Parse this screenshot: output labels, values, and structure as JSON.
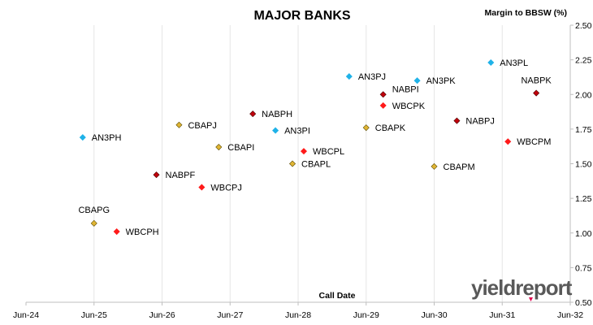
{
  "chart_data": {
    "type": "scatter",
    "title": "MAJOR BANKS",
    "xlabel": "Call Date",
    "ylabel": "Margin to BBSW (%)",
    "x_ticks": [
      "Jun-24",
      "Jun-25",
      "Jun-26",
      "Jun-27",
      "Jun-28",
      "Jun-29",
      "Jun-30",
      "Jun-31",
      "Jun-32"
    ],
    "y_ticks": [
      "0.50",
      "0.75",
      "1.00",
      "1.25",
      "1.50",
      "1.75",
      "2.00",
      "2.25",
      "2.50"
    ],
    "xlim": [
      "Jun-24",
      "Jun-32"
    ],
    "ylim": [
      0.5,
      2.5
    ],
    "grid": {
      "vertical": true,
      "horizontal": false
    },
    "colors": {
      "ANZ": "#1fb2e8",
      "CBA": "#e0b534",
      "NAB": "#c0000c",
      "WBC": "#ff1a1a"
    },
    "points": [
      {
        "label": "AN3PH",
        "x": "2025-04",
        "y": 1.69,
        "issuer": "ANZ"
      },
      {
        "label": "AN3PI",
        "x": "2028-02",
        "y": 1.74,
        "issuer": "ANZ"
      },
      {
        "label": "AN3PJ",
        "x": "2029-03",
        "y": 2.13,
        "issuer": "ANZ"
      },
      {
        "label": "AN3PK",
        "x": "2030-03",
        "y": 2.1,
        "issuer": "ANZ"
      },
      {
        "label": "AN3PL",
        "x": "2031-04",
        "y": 2.23,
        "issuer": "ANZ"
      },
      {
        "label": "CBAPG",
        "x": "2025-06",
        "y": 1.07,
        "issuer": "CBA"
      },
      {
        "label": "CBAPJ",
        "x": "2026-09",
        "y": 1.78,
        "issuer": "CBA"
      },
      {
        "label": "CBAPI",
        "x": "2027-04",
        "y": 1.62,
        "issuer": "CBA"
      },
      {
        "label": "CBAPL",
        "x": "2028-05",
        "y": 1.5,
        "issuer": "CBA"
      },
      {
        "label": "CBAPK",
        "x": "2029-06",
        "y": 1.76,
        "issuer": "CBA"
      },
      {
        "label": "CBAPM",
        "x": "2030-06",
        "y": 1.48,
        "issuer": "CBA"
      },
      {
        "label": "NABPF",
        "x": "2026-05",
        "y": 1.42,
        "issuer": "NAB"
      },
      {
        "label": "NABPH",
        "x": "2027-10",
        "y": 1.86,
        "issuer": "NAB"
      },
      {
        "label": "NABPI",
        "x": "2029-09",
        "y": 2.0,
        "issuer": "NAB"
      },
      {
        "label": "NABPJ",
        "x": "2030-10",
        "y": 1.81,
        "issuer": "NAB"
      },
      {
        "label": "NABPK",
        "x": "2031-12",
        "y": 2.01,
        "issuer": "NAB"
      },
      {
        "label": "WBCPH",
        "x": "2025-10",
        "y": 1.01,
        "issuer": "WBC"
      },
      {
        "label": "WBCPJ",
        "x": "2027-01",
        "y": 1.33,
        "issuer": "WBC"
      },
      {
        "label": "WBCPL",
        "x": "2028-07",
        "y": 1.59,
        "issuer": "WBC"
      },
      {
        "label": "WBCPK",
        "x": "2029-09",
        "y": 1.92,
        "issuer": "WBC"
      },
      {
        "label": "WBCPM",
        "x": "2031-07",
        "y": 1.66,
        "issuer": "WBC"
      }
    ]
  },
  "logo": {
    "text": "yieldreport",
    "color": "#595959",
    "accent": "#e0004d"
  }
}
